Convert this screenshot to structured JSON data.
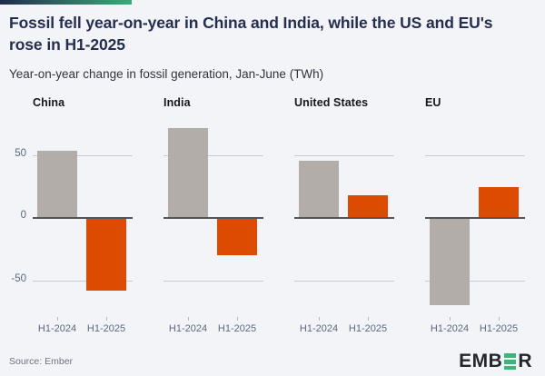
{
  "page": {
    "background": "#f3f4f8"
  },
  "accent_bar": {
    "start_color": "#202b4d",
    "end_color": "#42a978"
  },
  "header": {
    "title": "Fossil fell year-on-year in China and India, while the US and EU's rose in H1-2025",
    "subtitle": "Year-on-year change in fossil generation, Jan-June (TWh)"
  },
  "chart_data": {
    "type": "bar",
    "layout": "4 small-multiple panels sharing one y axis; horizontal gridlines at 50, 0, -50; no legend",
    "unit": "TWh",
    "categories": [
      "H1-2024",
      "H1-2025"
    ],
    "y_tick_labels": [
      "50",
      "0",
      "-50"
    ],
    "y_tick_values": [
      50,
      0,
      -50
    ],
    "ylim": [
      -77,
      76
    ],
    "series_colors": {
      "h1_2024": "#b3adaa",
      "h1_2025": "#dd4a01"
    },
    "panels": [
      {
        "title": "China",
        "values": [
          54,
          -58
        ]
      },
      {
        "title": "India",
        "values": [
          72,
          -29
        ]
      },
      {
        "title": "United States",
        "values": [
          46,
          18
        ]
      },
      {
        "title": "EU",
        "values": [
          -69,
          25
        ]
      }
    ]
  },
  "footer": {
    "source": "Source: Ember",
    "logo_text_left": "EMB",
    "logo_text_right": "R",
    "logo_green": "#3cb577",
    "logo_dark": "#24262c"
  }
}
